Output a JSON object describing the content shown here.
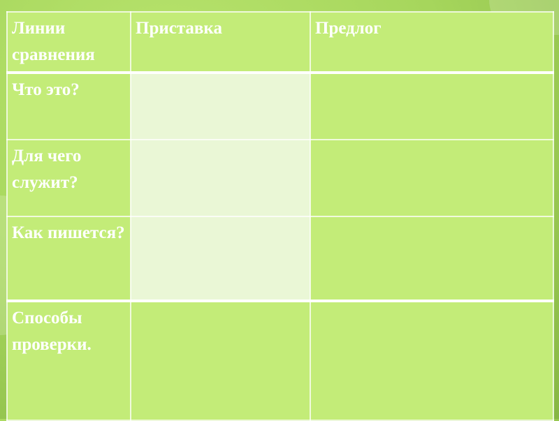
{
  "table": {
    "headers": [
      "Линии сравнения",
      "Приставка",
      "Предлог"
    ],
    "rows": [
      {
        "label": "Что это?",
        "cells": [
          "",
          ""
        ]
      },
      {
        "label": "Для чего служит?",
        "cells": [
          "",
          ""
        ]
      },
      {
        "label": "Как пишется?",
        "cells": [
          "",
          ""
        ]
      },
      {
        "label": "Способы проверки.",
        "cells": [
          "",
          ""
        ]
      }
    ]
  },
  "colors": {
    "cell": "#c3ec78",
    "highlight_cell": "#eaf7d6",
    "text": "#ffffff"
  }
}
